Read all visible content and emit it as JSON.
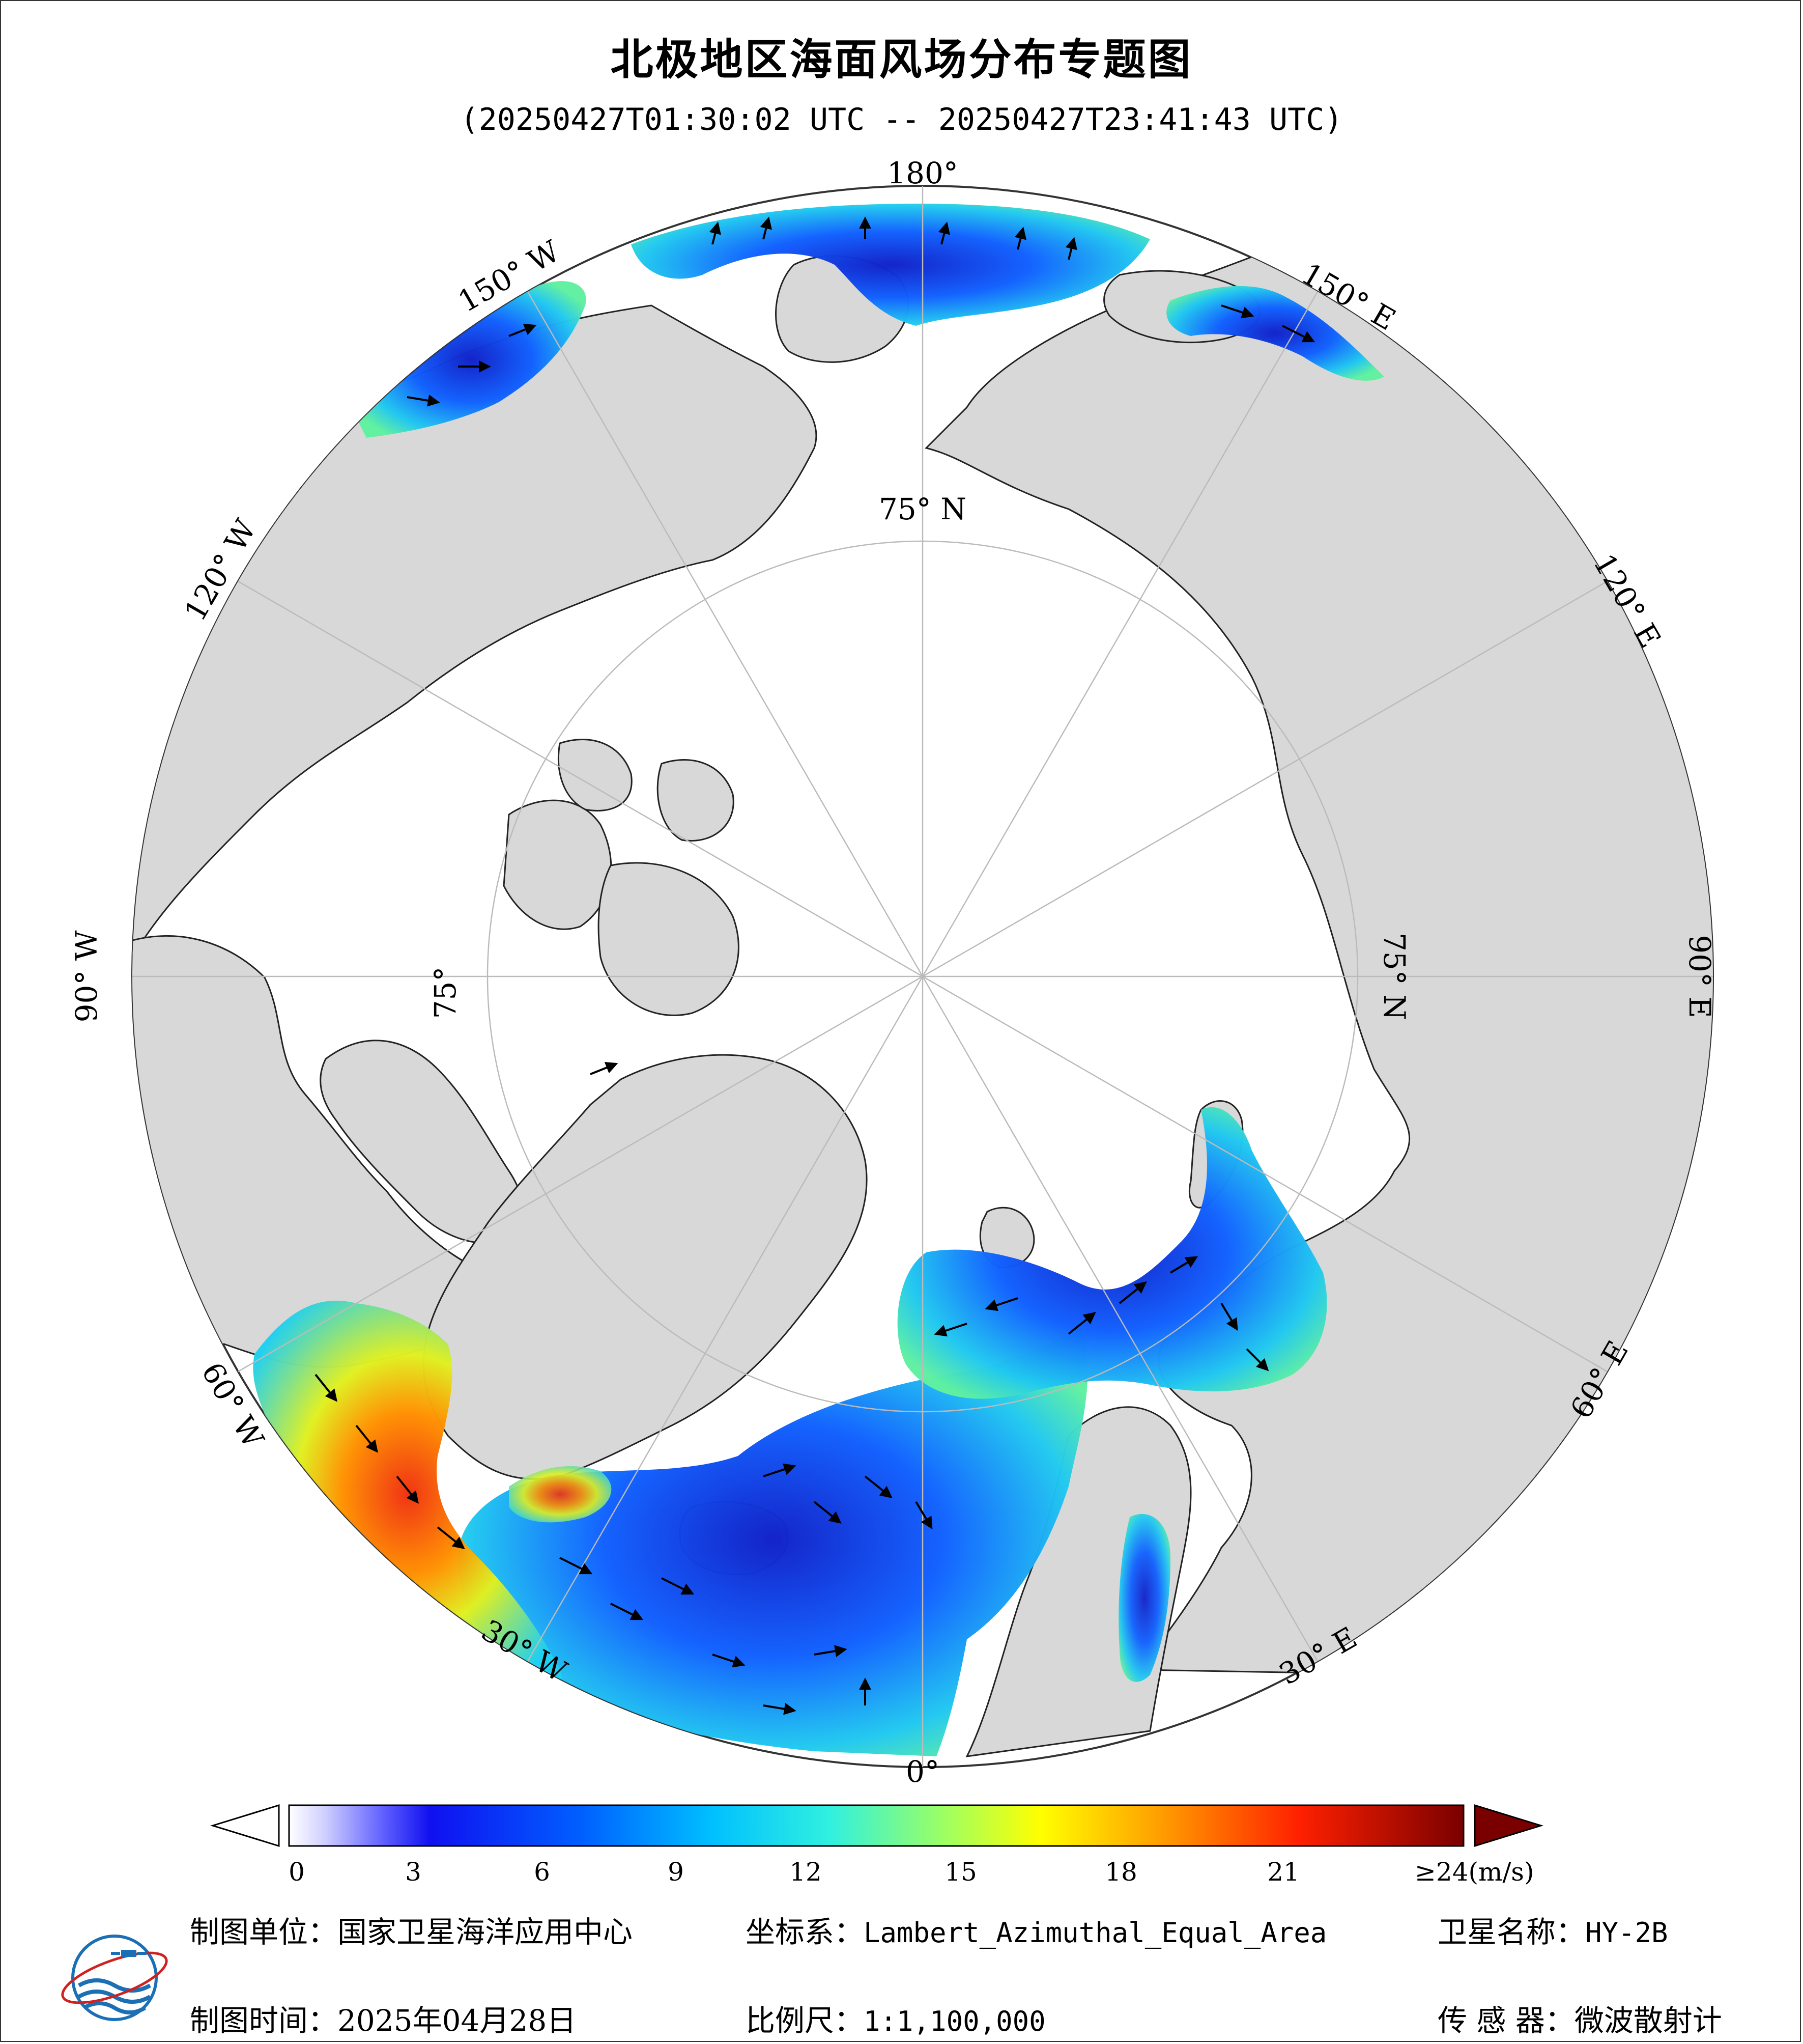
{
  "title": "北极地区海面风场分布专题图",
  "time_range": "(20250427T01:30:02 UTC -- 20250427T23:41:43 UTC)",
  "map": {
    "projection_labels": {
      "lon_180": "180°",
      "lon_150w": "150° W",
      "lon_120w": "120° W",
      "lon_90w": "90° W",
      "lon_60w": "60° W",
      "lon_30w": "30° W",
      "lon_0": "0°",
      "lon_30e": "30° E",
      "lon_60e": "60° E",
      "lon_90e": "90° E",
      "lon_120e": "120° E",
      "lon_150e": "150° E",
      "lat_75n_top": "75° N",
      "lat_75n_right": "75° N",
      "lat_75n_left": "75°"
    },
    "colors": {
      "ocean_no_data": "#ffffff",
      "land": "#d8d8d8",
      "low_wind": "#1030e0",
      "mid_wind": "#30e0e0",
      "high_wind": "#f03010",
      "arrow": "#000000"
    }
  },
  "colorbar": {
    "ticks": [
      "0",
      "3",
      "6",
      "9",
      "12",
      "15",
      "18",
      "21"
    ],
    "max_label": "≥24",
    "unit": "(m/s)",
    "stops": [
      "#ffffff",
      "#c8c8ff",
      "#6060ff",
      "#2020f0",
      "#0050ff",
      "#0090ff",
      "#00d0ff",
      "#30f0d0",
      "#80ff80",
      "#c0ff30",
      "#ffff00",
      "#ffc000",
      "#ff8000",
      "#ff3000",
      "#e00000",
      "#800000"
    ]
  },
  "footer": {
    "unit_label": "制图单位：",
    "unit_value": "国家卫星海洋应用中心",
    "coord_label": "坐标系：",
    "coord_value": "Lambert_Azimuthal_Equal_Area",
    "sat_label": "卫星名称：",
    "sat_value": "HY-2B",
    "time_label": "制图时间：",
    "time_value": "2025年04月28日",
    "scale_label": "比例尺：",
    "scale_value": "1:1,100,000",
    "sensor_label": "传 感 器：",
    "sensor_value": "微波散射计"
  },
  "logo_icon": "nsoas-logo-icon"
}
